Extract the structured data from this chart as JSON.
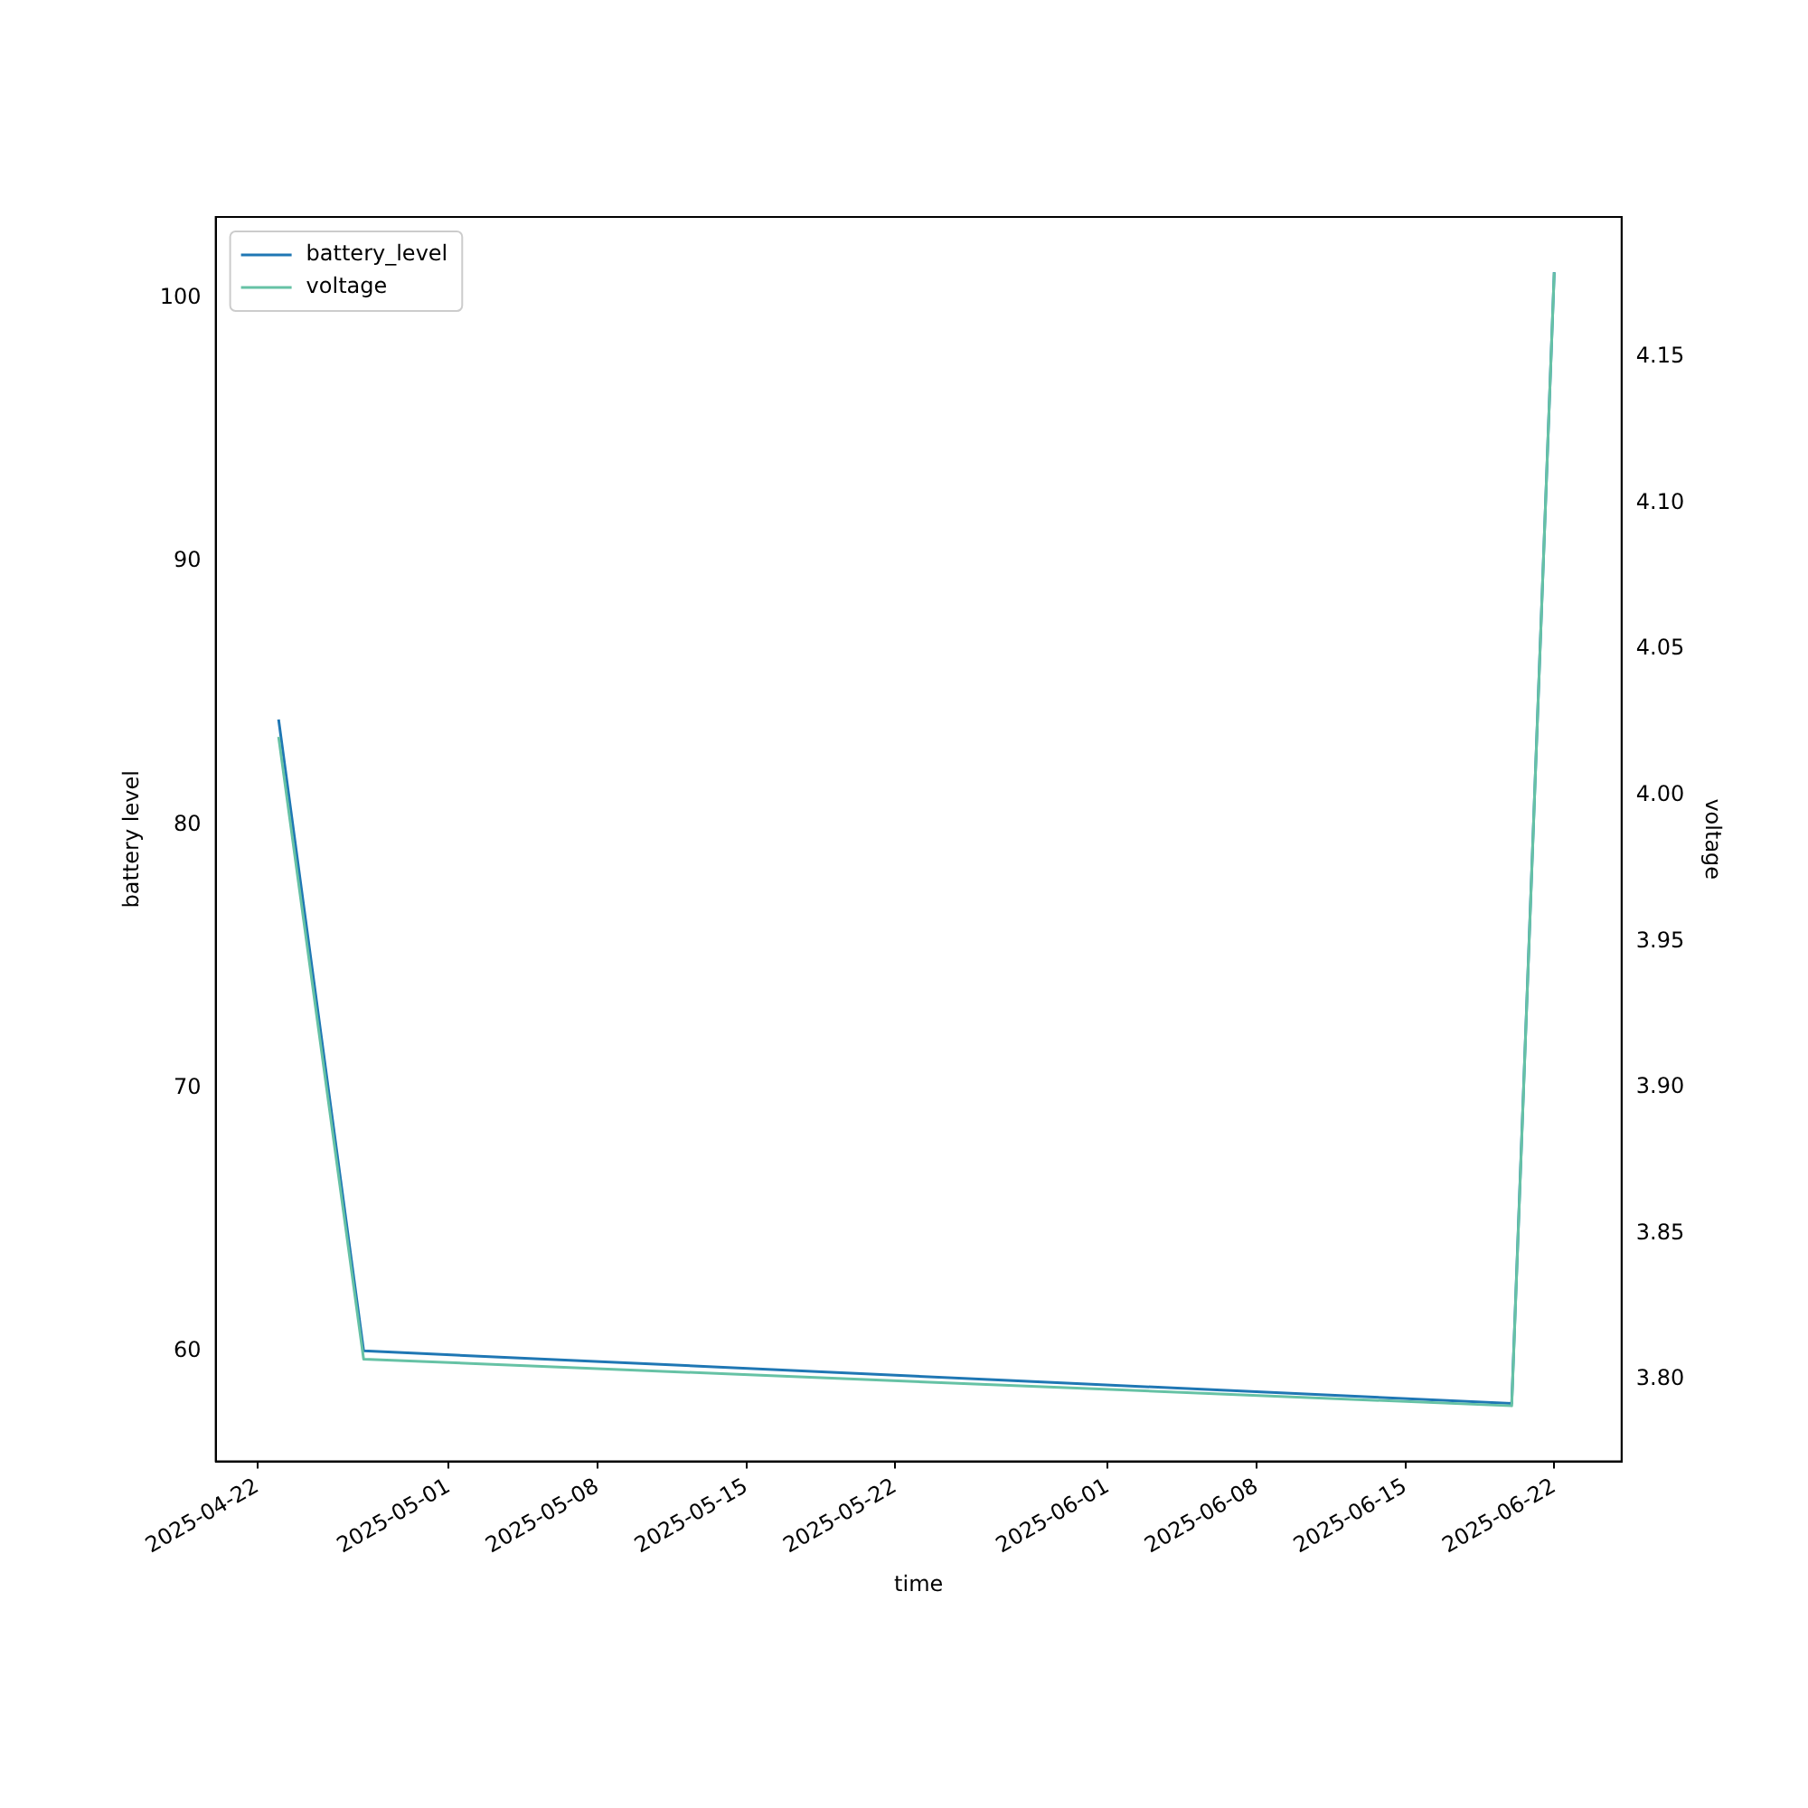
{
  "chart_data": {
    "type": "line",
    "xlabel": "time",
    "ylabel": "battery level",
    "y2label": "voltage",
    "xlim": [
      "2025-04-20T01:00",
      "2025-06-25T04:00"
    ],
    "xticks": [
      "2025-04-22",
      "2025-05-01",
      "2025-05-08",
      "2025-05-15",
      "2025-05-22",
      "2025-06-01",
      "2025-06-08",
      "2025-06-15",
      "2025-06-22"
    ],
    "ylim": [
      55.8,
      103.1
    ],
    "yticks": [
      60,
      70,
      80,
      90,
      100
    ],
    "y2lim": [
      3.772,
      4.198
    ],
    "y2ticks": [
      {
        "value": 3.8,
        "label": "3.80"
      },
      3.85,
      {
        "value": 3.9,
        "label": "3.90"
      },
      3.95,
      {
        "value": 4.0,
        "label": "4.00"
      },
      4.05,
      {
        "value": 4.1,
        "label": "4.10"
      },
      4.15
    ],
    "series": [
      {
        "name": "battery_level",
        "color": "#1f77b4",
        "x": [
          "2025-04-23",
          "2025-04-27",
          "2025-06-20",
          "2025-06-22"
        ],
        "values": [
          84,
          60,
          58,
          101
        ]
      },
      {
        "name": "voltage",
        "color": "#66c2a5",
        "axis": "y2",
        "x": [
          "2025-04-23",
          "2025-04-27",
          "2025-06-20",
          "2025-06-22"
        ],
        "values": [
          4.02,
          3.807,
          3.791,
          4.179
        ]
      }
    ],
    "legend": "top left",
    "grid": false,
    "marker": "none",
    "line_style": "solid"
  }
}
